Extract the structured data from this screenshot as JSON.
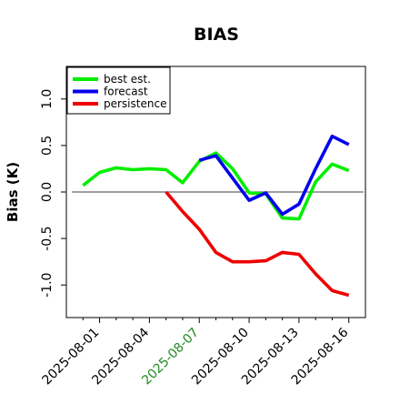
{
  "chart_data": {
    "type": "line",
    "title": "BIAS",
    "ylabel": "Bias (K)",
    "xlabel": "",
    "ylim": [
      -1.35,
      1.35
    ],
    "xlim": [
      "2025-07-30",
      "2025-08-17"
    ],
    "yticks": [
      -1.0,
      -0.5,
      0.0,
      0.5,
      1.0
    ],
    "ytick_labels": [
      "-1.0",
      "-0.5",
      "0.0",
      "0.5",
      "1.0"
    ],
    "xticks": [
      "2025-08-01",
      "2025-08-04",
      "2025-08-07",
      "2025-08-10",
      "2025-08-13",
      "2025-08-16"
    ],
    "xtick_colors": [
      "#000000",
      "#000000",
      "#228B22",
      "#000000",
      "#000000",
      "#000000"
    ],
    "minor_xticks": [
      "2025-07-31",
      "2025-08-02",
      "2025-08-03",
      "2025-08-05",
      "2025-08-06",
      "2025-08-08",
      "2025-08-09",
      "2025-08-11",
      "2025-08-12",
      "2025-08-14",
      "2025-08-15"
    ],
    "reference_line": {
      "y": 0.0,
      "color": "#666666"
    },
    "grid": false,
    "legend": {
      "placement": "top-left"
    },
    "series": [
      {
        "name": "best est.",
        "color": "#00ee00",
        "points": [
          [
            "2025-07-31",
            0.07
          ],
          [
            "2025-08-01",
            0.21
          ],
          [
            "2025-08-02",
            0.26
          ],
          [
            "2025-08-03",
            0.24
          ],
          [
            "2025-08-04",
            0.25
          ],
          [
            "2025-08-05",
            0.24
          ],
          [
            "2025-08-06",
            0.1
          ],
          [
            "2025-08-07",
            0.33
          ],
          [
            "2025-08-08",
            0.42
          ],
          [
            "2025-08-09",
            0.25
          ],
          [
            "2025-08-10",
            -0.01
          ],
          [
            "2025-08-11",
            -0.02
          ],
          [
            "2025-08-12",
            -0.28
          ],
          [
            "2025-08-13",
            -0.29
          ],
          [
            "2025-08-14",
            0.11
          ],
          [
            "2025-08-15",
            0.3
          ],
          [
            "2025-08-16",
            0.23
          ]
        ]
      },
      {
        "name": "forecast",
        "color": "#0000ee",
        "points": [
          [
            "2025-08-07",
            0.34
          ],
          [
            "2025-08-08",
            0.39
          ],
          [
            "2025-08-09",
            0.15
          ],
          [
            "2025-08-10",
            -0.09
          ],
          [
            "2025-08-11",
            -0.01
          ],
          [
            "2025-08-12",
            -0.24
          ],
          [
            "2025-08-13",
            -0.13
          ],
          [
            "2025-08-14",
            0.25
          ],
          [
            "2025-08-15",
            0.6
          ],
          [
            "2025-08-16",
            0.51
          ]
        ]
      },
      {
        "name": "persistence",
        "color": "#ee0000",
        "points": [
          [
            "2025-08-05",
            0.0
          ],
          [
            "2025-08-06",
            -0.21
          ],
          [
            "2025-08-07",
            -0.4
          ],
          [
            "2025-08-08",
            -0.65
          ],
          [
            "2025-08-09",
            -0.75
          ],
          [
            "2025-08-10",
            -0.75
          ],
          [
            "2025-08-11",
            -0.74
          ],
          [
            "2025-08-12",
            -0.65
          ],
          [
            "2025-08-13",
            -0.67
          ],
          [
            "2025-08-14",
            -0.88
          ],
          [
            "2025-08-15",
            -1.06
          ],
          [
            "2025-08-16",
            -1.11
          ]
        ]
      }
    ]
  }
}
